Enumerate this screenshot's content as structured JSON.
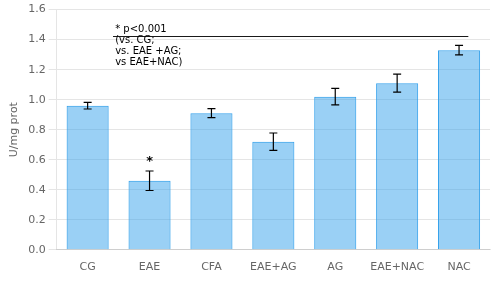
{
  "chart_data": {
    "type": "bar",
    "categories": [
      "CG",
      "EAE",
      "CFA",
      "EAE+AG",
      "AG",
      "EAE+NAC",
      "NAC"
    ],
    "values": [
      0.96,
      0.46,
      0.91,
      0.72,
      1.02,
      1.11,
      1.33
    ],
    "errors": [
      0.022,
      0.065,
      0.03,
      0.058,
      0.055,
      0.06,
      0.032
    ],
    "ylabel": "U/mg prot",
    "ylim": [
      0,
      1.6
    ],
    "yticks": [
      {
        "value": 0,
        "label": "0.0"
      },
      0.2,
      0.4,
      0.6,
      0.8,
      {
        "value": 1.0,
        "label": "1.0"
      },
      1.2,
      1.4,
      1.6
    ],
    "grid": true,
    "annotations": [
      {
        "text": "*",
        "category": "EAE"
      },
      {
        "text": "* p<0.001\n(vs. CG;\nvs. EAE +AG;\nvs EAE+NAC)"
      }
    ]
  }
}
